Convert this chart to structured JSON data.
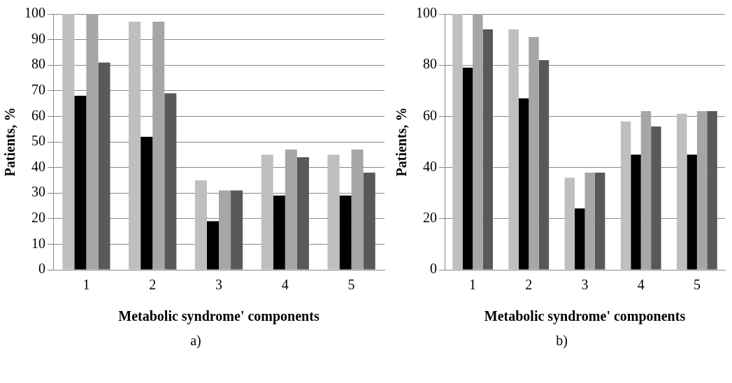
{
  "chart_data": [
    {
      "type": "bar",
      "xlabel": "Metabolic syndrome' components",
      "ylabel": "Patients, %",
      "categories": [
        "1",
        "2",
        "3",
        "4",
        "5"
      ],
      "series": [
        {
          "color": "#bfbfbf",
          "values": [
            100,
            97,
            35,
            45,
            45
          ]
        },
        {
          "color": "#000000",
          "values": [
            68,
            52,
            19,
            29,
            29
          ]
        },
        {
          "color": "#a6a6a6",
          "values": [
            100,
            97,
            31,
            47,
            47
          ]
        },
        {
          "color": "#595959",
          "values": [
            81,
            69,
            31,
            44,
            38
          ]
        }
      ],
      "ylim": [
        0,
        100
      ],
      "yticks": [
        0,
        10,
        20,
        30,
        40,
        50,
        60,
        70,
        80,
        90,
        100
      ],
      "grid": "y",
      "annotations": [
        "a)"
      ]
    },
    {
      "type": "bar",
      "xlabel": "Metabolic syndrome' components",
      "ylabel": "Patients, %",
      "categories": [
        "1",
        "2",
        "3",
        "4",
        "5"
      ],
      "series": [
        {
          "color": "#bfbfbf",
          "values": [
            100,
            94,
            36,
            58,
            61
          ]
        },
        {
          "color": "#000000",
          "values": [
            79,
            67,
            24,
            45,
            45
          ]
        },
        {
          "color": "#a6a6a6",
          "values": [
            100,
            91,
            38,
            62,
            62
          ]
        },
        {
          "color": "#595959",
          "values": [
            94,
            82,
            38,
            56,
            62
          ]
        }
      ],
      "ylim": [
        0,
        100
      ],
      "yticks": [
        0,
        20,
        40,
        60,
        80,
        100
      ],
      "grid": "y",
      "annotations": [
        "b)"
      ]
    }
  ]
}
